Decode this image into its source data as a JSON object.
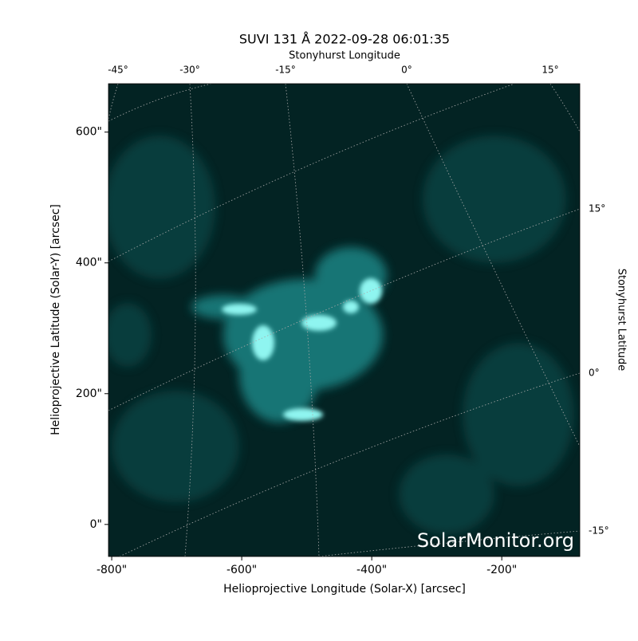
{
  "chart_data": {
    "type": "image",
    "title": "SUVI 131 Å 2022-09-28 06:01:35",
    "xlabel": "Helioprojective Longitude (Solar-X) [arcsec]",
    "ylabel": "Helioprojective Latitude (Solar-Y) [arcsec]",
    "top_label": "Stonyhurst Longitude",
    "right_label": "Stonyhurst Latitude",
    "xlim": [
      -805,
      -80
    ],
    "ylim": [
      -49,
      674
    ],
    "xticks": [
      {
        "value": -800,
        "label": "-800\""
      },
      {
        "value": -600,
        "label": "-600\""
      },
      {
        "value": -400,
        "label": "-400\""
      },
      {
        "value": -200,
        "label": "-200\""
      }
    ],
    "yticks": [
      {
        "value": 0,
        "label": "0\""
      },
      {
        "value": 200,
        "label": "200\""
      },
      {
        "value": 400,
        "label": "400\""
      },
      {
        "value": 600,
        "label": "600\""
      }
    ],
    "top_ticks": [
      "-45°",
      "-30°",
      "-15°",
      "0°",
      "15°"
    ],
    "right_ticks": [
      "15°",
      "0°",
      "-15°"
    ],
    "watermark": "SolarMonitor.org"
  }
}
